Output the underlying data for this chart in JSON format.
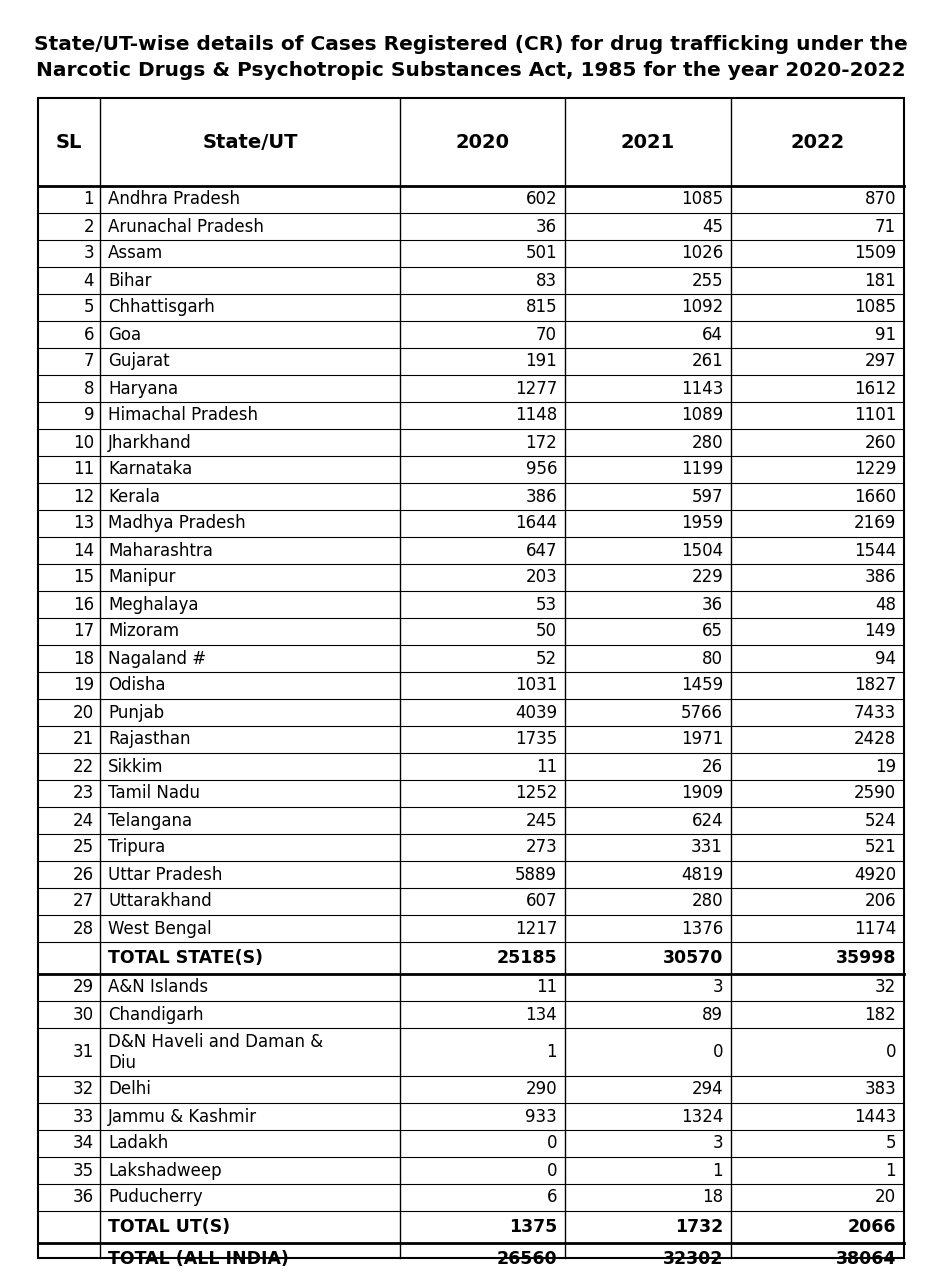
{
  "title_line1": "State/UT-wise details of Cases Registered (CR) for drug trafficking under the",
  "title_line2": "Narcotic Drugs & Psychotropic Substances Act, 1985 for the year 2020-2022",
  "columns": [
    "SL",
    "State/UT",
    "2020",
    "2021",
    "2022"
  ],
  "rows": [
    [
      "1",
      "Andhra Pradesh",
      "602",
      "1085",
      "870"
    ],
    [
      "2",
      "Arunachal Pradesh",
      "36",
      "45",
      "71"
    ],
    [
      "3",
      "Assam",
      "501",
      "1026",
      "1509"
    ],
    [
      "4",
      "Bihar",
      "83",
      "255",
      "181"
    ],
    [
      "5",
      "Chhattisgarh",
      "815",
      "1092",
      "1085"
    ],
    [
      "6",
      "Goa",
      "70",
      "64",
      "91"
    ],
    [
      "7",
      "Gujarat",
      "191",
      "261",
      "297"
    ],
    [
      "8",
      "Haryana",
      "1277",
      "1143",
      "1612"
    ],
    [
      "9",
      "Himachal Pradesh",
      "1148",
      "1089",
      "1101"
    ],
    [
      "10",
      "Jharkhand",
      "172",
      "280",
      "260"
    ],
    [
      "11",
      "Karnataka",
      "956",
      "1199",
      "1229"
    ],
    [
      "12",
      "Kerala",
      "386",
      "597",
      "1660"
    ],
    [
      "13",
      "Madhya Pradesh",
      "1644",
      "1959",
      "2169"
    ],
    [
      "14",
      "Maharashtra",
      "647",
      "1504",
      "1544"
    ],
    [
      "15",
      "Manipur",
      "203",
      "229",
      "386"
    ],
    [
      "16",
      "Meghalaya",
      "53",
      "36",
      "48"
    ],
    [
      "17",
      "Mizoram",
      "50",
      "65",
      "149"
    ],
    [
      "18",
      "Nagaland #",
      "52",
      "80",
      "94"
    ],
    [
      "19",
      "Odisha",
      "1031",
      "1459",
      "1827"
    ],
    [
      "20",
      "Punjab",
      "4039",
      "5766",
      "7433"
    ],
    [
      "21",
      "Rajasthan",
      "1735",
      "1971",
      "2428"
    ],
    [
      "22",
      "Sikkim",
      "11",
      "26",
      "19"
    ],
    [
      "23",
      "Tamil Nadu",
      "1252",
      "1909",
      "2590"
    ],
    [
      "24",
      "Telangana",
      "245",
      "624",
      "524"
    ],
    [
      "25",
      "Tripura",
      "273",
      "331",
      "521"
    ],
    [
      "26",
      "Uttar Pradesh",
      "5889",
      "4819",
      "4920"
    ],
    [
      "27",
      "Uttarakhand",
      "607",
      "280",
      "206"
    ],
    [
      "28",
      "West Bengal",
      "1217",
      "1376",
      "1174"
    ]
  ],
  "total_states": [
    "",
    "TOTAL STATE(S)",
    "25185",
    "30570",
    "35998"
  ],
  "ut_rows": [
    [
      "29",
      "A&N Islands",
      "11",
      "3",
      "32"
    ],
    [
      "30",
      "Chandigarh",
      "134",
      "89",
      "182"
    ],
    [
      "31",
      "D&N Haveli and Daman &\nDiu",
      "1",
      "0",
      "0"
    ],
    [
      "32",
      "Delhi",
      "290",
      "294",
      "383"
    ],
    [
      "33",
      "Jammu & Kashmir",
      "933",
      "1324",
      "1443"
    ],
    [
      "34",
      "Ladakh",
      "0",
      "3",
      "5"
    ],
    [
      "35",
      "Lakshadweep",
      "0",
      "1",
      "1"
    ],
    [
      "36",
      "Puducherry",
      "6",
      "18",
      "20"
    ]
  ],
  "total_uts": [
    "",
    "TOTAL UT(S)",
    "1375",
    "1732",
    "2066"
  ],
  "total_india": [
    "",
    "TOTAL (ALL INDIA)",
    "26560",
    "32302",
    "38064"
  ],
  "background_color": "#ffffff",
  "text_color": "#000000",
  "title_fontsize": 14.5,
  "header_fontsize": 14,
  "data_fontsize": 12,
  "total_fontsize": 12.5
}
